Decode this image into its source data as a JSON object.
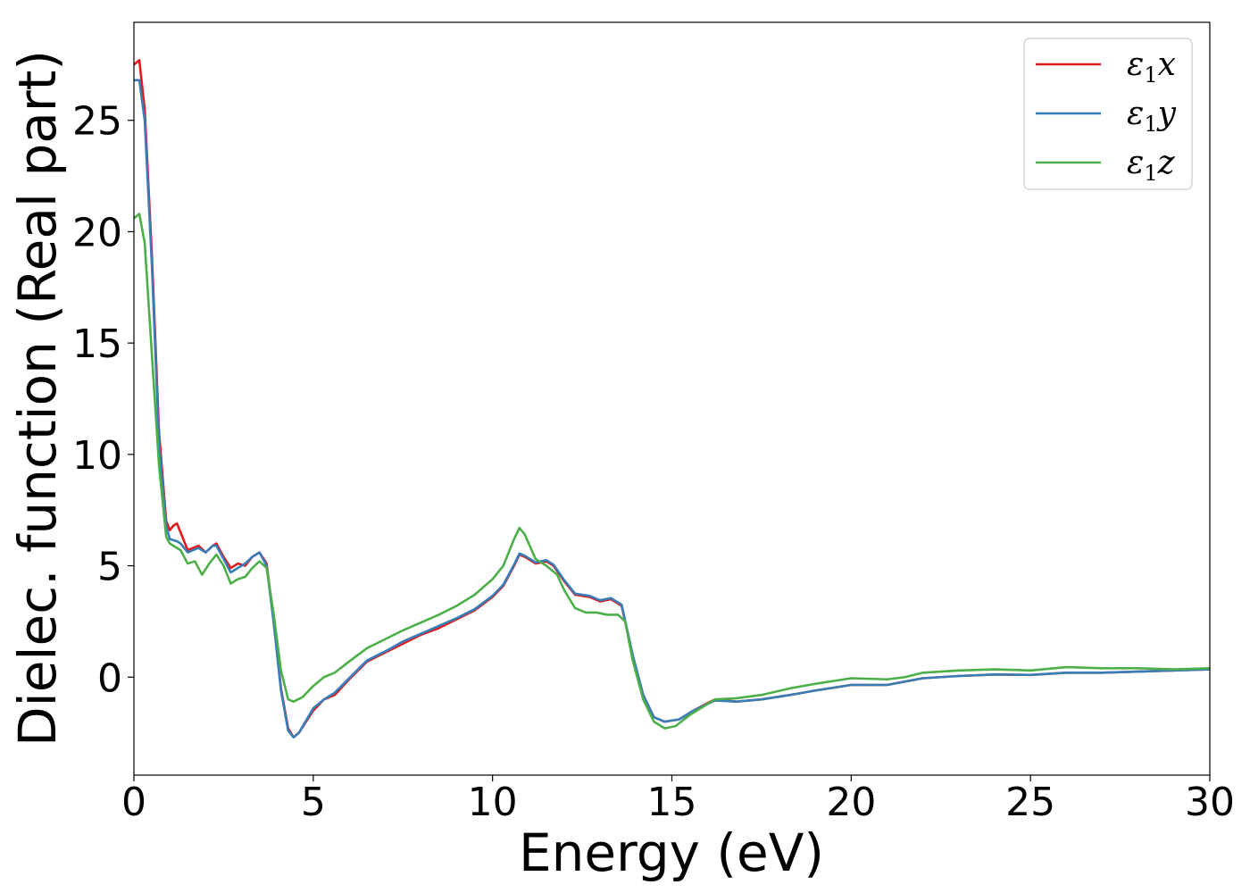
{
  "chart_data": {
    "type": "line",
    "xlabel": "Energy (eV)",
    "ylabel": "Dielec. function (Real part)",
    "xlim": [
      0,
      30
    ],
    "ylim": [
      -4.4,
      29.4
    ],
    "xticks": [
      0,
      5,
      10,
      15,
      20,
      25,
      30
    ],
    "yticks": [
      0,
      5,
      10,
      15,
      20,
      25
    ],
    "grid": false,
    "legend_position": "top-right",
    "series": [
      {
        "name": "ε₁x",
        "legend_base": "ε",
        "legend_sub": "1",
        "legend_tail": "x",
        "color": "#e41a1c",
        "points": [
          [
            0,
            27.5
          ],
          [
            0.15,
            27.7
          ],
          [
            0.3,
            25.5
          ],
          [
            0.5,
            19.0
          ],
          [
            0.7,
            11.0
          ],
          [
            0.9,
            7.0
          ],
          [
            1.0,
            6.6
          ],
          [
            1.1,
            6.8
          ],
          [
            1.2,
            6.9
          ],
          [
            1.3,
            6.5
          ],
          [
            1.5,
            5.7
          ],
          [
            1.8,
            5.9
          ],
          [
            2.0,
            5.6
          ],
          [
            2.2,
            5.9
          ],
          [
            2.3,
            6.0
          ],
          [
            2.5,
            5.4
          ],
          [
            2.7,
            4.9
          ],
          [
            2.9,
            5.1
          ],
          [
            3.1,
            5.0
          ],
          [
            3.3,
            5.4
          ],
          [
            3.5,
            5.6
          ],
          [
            3.7,
            5.1
          ],
          [
            3.9,
            2.5
          ],
          [
            4.1,
            -0.5
          ],
          [
            4.3,
            -2.3
          ],
          [
            4.45,
            -2.7
          ],
          [
            4.6,
            -2.5
          ],
          [
            5.0,
            -1.5
          ],
          [
            5.3,
            -1.0
          ],
          [
            5.6,
            -0.8
          ],
          [
            6.0,
            -0.1
          ],
          [
            6.5,
            0.7
          ],
          [
            7.0,
            1.1
          ],
          [
            7.5,
            1.5
          ],
          [
            8.0,
            1.9
          ],
          [
            8.5,
            2.2
          ],
          [
            9.0,
            2.6
          ],
          [
            9.5,
            3.0
          ],
          [
            10.0,
            3.6
          ],
          [
            10.3,
            4.1
          ],
          [
            10.6,
            5.0
          ],
          [
            10.75,
            5.5
          ],
          [
            10.9,
            5.4
          ],
          [
            11.2,
            5.1
          ],
          [
            11.5,
            5.2
          ],
          [
            11.7,
            5.0
          ],
          [
            12.0,
            4.3
          ],
          [
            12.3,
            3.7
          ],
          [
            12.7,
            3.6
          ],
          [
            13.0,
            3.4
          ],
          [
            13.3,
            3.5
          ],
          [
            13.6,
            3.2
          ],
          [
            13.9,
            1.0
          ],
          [
            14.2,
            -0.8
          ],
          [
            14.5,
            -1.8
          ],
          [
            14.8,
            -2.0
          ],
          [
            15.2,
            -1.9
          ],
          [
            15.6,
            -1.5
          ],
          [
            16.2,
            -1.0
          ],
          [
            16.8,
            -1.1
          ],
          [
            17.5,
            -1.0
          ],
          [
            18.3,
            -0.8
          ],
          [
            19.0,
            -0.6
          ],
          [
            20.0,
            -0.35
          ],
          [
            21.0,
            -0.35
          ],
          [
            22.0,
            -0.05
          ],
          [
            23.0,
            0.05
          ],
          [
            24.0,
            0.12
          ],
          [
            25.0,
            0.1
          ],
          [
            26.0,
            0.2
          ],
          [
            27.0,
            0.2
          ],
          [
            28.0,
            0.25
          ],
          [
            29.0,
            0.3
          ],
          [
            30.0,
            0.35
          ]
        ]
      },
      {
        "name": "ε₁y",
        "legend_base": "ε",
        "legend_sub": "1",
        "legend_tail": "y",
        "color": "#377eb8",
        "points": [
          [
            0,
            26.8
          ],
          [
            0.15,
            26.8
          ],
          [
            0.3,
            25.0
          ],
          [
            0.5,
            18.5
          ],
          [
            0.7,
            10.5
          ],
          [
            0.9,
            6.8
          ],
          [
            1.0,
            6.2
          ],
          [
            1.2,
            6.1
          ],
          [
            1.3,
            6.0
          ],
          [
            1.5,
            5.6
          ],
          [
            1.8,
            5.8
          ],
          [
            2.0,
            5.6
          ],
          [
            2.2,
            5.9
          ],
          [
            2.3,
            5.9
          ],
          [
            2.5,
            5.3
          ],
          [
            2.7,
            4.7
          ],
          [
            2.9,
            4.9
          ],
          [
            3.1,
            5.1
          ],
          [
            3.3,
            5.4
          ],
          [
            3.5,
            5.6
          ],
          [
            3.7,
            5.0
          ],
          [
            3.9,
            2.4
          ],
          [
            4.1,
            -0.6
          ],
          [
            4.3,
            -2.4
          ],
          [
            4.45,
            -2.7
          ],
          [
            4.6,
            -2.5
          ],
          [
            5.0,
            -1.4
          ],
          [
            5.3,
            -1.0
          ],
          [
            5.6,
            -0.7
          ],
          [
            6.0,
            -0.05
          ],
          [
            6.5,
            0.75
          ],
          [
            7.0,
            1.15
          ],
          [
            7.5,
            1.6
          ],
          [
            8.0,
            1.95
          ],
          [
            8.5,
            2.3
          ],
          [
            9.0,
            2.65
          ],
          [
            9.5,
            3.05
          ],
          [
            10.0,
            3.65
          ],
          [
            10.3,
            4.15
          ],
          [
            10.6,
            5.05
          ],
          [
            10.75,
            5.55
          ],
          [
            10.9,
            5.45
          ],
          [
            11.2,
            5.15
          ],
          [
            11.5,
            5.25
          ],
          [
            11.7,
            5.05
          ],
          [
            12.0,
            4.35
          ],
          [
            12.3,
            3.75
          ],
          [
            12.7,
            3.65
          ],
          [
            13.0,
            3.45
          ],
          [
            13.3,
            3.55
          ],
          [
            13.6,
            3.25
          ],
          [
            13.9,
            1.05
          ],
          [
            14.2,
            -0.8
          ],
          [
            14.5,
            -1.8
          ],
          [
            14.8,
            -2.0
          ],
          [
            15.2,
            -1.9
          ],
          [
            15.6,
            -1.5
          ],
          [
            16.2,
            -1.05
          ],
          [
            16.8,
            -1.1
          ],
          [
            17.5,
            -1.0
          ],
          [
            18.3,
            -0.8
          ],
          [
            19.0,
            -0.6
          ],
          [
            20.0,
            -0.35
          ],
          [
            21.0,
            -0.35
          ],
          [
            22.0,
            -0.05
          ],
          [
            23.0,
            0.05
          ],
          [
            24.0,
            0.12
          ],
          [
            25.0,
            0.1
          ],
          [
            26.0,
            0.2
          ],
          [
            27.0,
            0.2
          ],
          [
            28.0,
            0.25
          ],
          [
            29.0,
            0.3
          ],
          [
            30.0,
            0.35
          ]
        ]
      },
      {
        "name": "ε₁z",
        "legend_base": "ε",
        "legend_sub": "1",
        "legend_tail": "z",
        "color": "#4daf4a",
        "points": [
          [
            0,
            20.6
          ],
          [
            0.15,
            20.8
          ],
          [
            0.3,
            19.5
          ],
          [
            0.5,
            14.5
          ],
          [
            0.7,
            9.5
          ],
          [
            0.9,
            6.3
          ],
          [
            1.0,
            6.0
          ],
          [
            1.2,
            5.8
          ],
          [
            1.3,
            5.7
          ],
          [
            1.5,
            5.1
          ],
          [
            1.7,
            5.2
          ],
          [
            1.9,
            4.6
          ],
          [
            2.1,
            5.1
          ],
          [
            2.3,
            5.5
          ],
          [
            2.5,
            5.0
          ],
          [
            2.7,
            4.2
          ],
          [
            2.9,
            4.4
          ],
          [
            3.1,
            4.5
          ],
          [
            3.3,
            4.9
          ],
          [
            3.5,
            5.2
          ],
          [
            3.7,
            4.9
          ],
          [
            3.9,
            2.8
          ],
          [
            4.1,
            0.3
          ],
          [
            4.3,
            -1.0
          ],
          [
            4.45,
            -1.1
          ],
          [
            4.7,
            -0.9
          ],
          [
            5.0,
            -0.4
          ],
          [
            5.3,
            0.0
          ],
          [
            5.6,
            0.2
          ],
          [
            6.0,
            0.7
          ],
          [
            6.5,
            1.3
          ],
          [
            7.0,
            1.7
          ],
          [
            7.5,
            2.1
          ],
          [
            8.0,
            2.45
          ],
          [
            8.5,
            2.8
          ],
          [
            9.0,
            3.2
          ],
          [
            9.5,
            3.7
          ],
          [
            10.0,
            4.4
          ],
          [
            10.3,
            5.0
          ],
          [
            10.6,
            6.2
          ],
          [
            10.75,
            6.7
          ],
          [
            10.9,
            6.4
          ],
          [
            11.2,
            5.3
          ],
          [
            11.5,
            5.0
          ],
          [
            11.8,
            4.6
          ],
          [
            12.0,
            3.9
          ],
          [
            12.3,
            3.1
          ],
          [
            12.6,
            2.9
          ],
          [
            12.9,
            2.9
          ],
          [
            13.2,
            2.8
          ],
          [
            13.5,
            2.8
          ],
          [
            13.7,
            2.5
          ],
          [
            13.9,
            0.8
          ],
          [
            14.2,
            -1.0
          ],
          [
            14.5,
            -2.0
          ],
          [
            14.8,
            -2.3
          ],
          [
            15.1,
            -2.2
          ],
          [
            15.5,
            -1.7
          ],
          [
            16.2,
            -1.0
          ],
          [
            16.8,
            -0.95
          ],
          [
            17.5,
            -0.8
          ],
          [
            18.3,
            -0.5
          ],
          [
            19.0,
            -0.3
          ],
          [
            20.0,
            -0.05
          ],
          [
            21.0,
            -0.1
          ],
          [
            21.5,
            0.0
          ],
          [
            22.0,
            0.2
          ],
          [
            23.0,
            0.3
          ],
          [
            24.0,
            0.35
          ],
          [
            25.0,
            0.3
          ],
          [
            26.0,
            0.45
          ],
          [
            27.0,
            0.4
          ],
          [
            28.0,
            0.4
          ],
          [
            29.0,
            0.35
          ],
          [
            30.0,
            0.4
          ]
        ]
      }
    ]
  }
}
